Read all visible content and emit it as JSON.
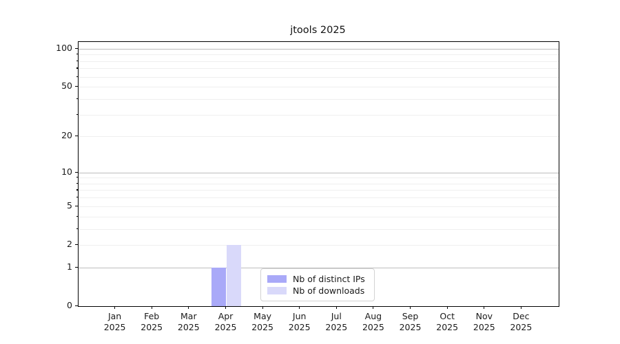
{
  "chart_data": {
    "type": "bar",
    "title": "jtools 2025",
    "x_months": [
      "Jan",
      "Feb",
      "Mar",
      "Apr",
      "May",
      "Jun",
      "Jul",
      "Aug",
      "Sep",
      "Oct",
      "Nov",
      "Dec"
    ],
    "x_year": "2025",
    "categories": [
      "Jan 2025",
      "Feb 2025",
      "Mar 2025",
      "Apr 2025",
      "May 2025",
      "Jun 2025",
      "Jul 2025",
      "Aug 2025",
      "Sep 2025",
      "Oct 2025",
      "Nov 2025",
      "Dec 2025"
    ],
    "series": [
      {
        "name": "Nb of distinct IPs",
        "color": "#a9a9f8",
        "values": [
          0,
          0,
          0,
          1,
          0,
          0,
          0,
          0,
          0,
          0,
          0,
          0
        ]
      },
      {
        "name": "Nb of downloads",
        "color": "#d9d9fa",
        "values": [
          0,
          0,
          0,
          2,
          0,
          0,
          0,
          0,
          0,
          0,
          0,
          0
        ]
      }
    ],
    "yscale": "log1p",
    "ylim": [
      0,
      113
    ],
    "y_ticks": [
      0,
      1,
      2,
      5,
      10,
      20,
      50,
      100
    ],
    "y_tick_labels": [
      "0",
      "1",
      "2",
      "5",
      "10",
      "20",
      "50",
      "100"
    ],
    "y_major_gridlines": [
      1,
      10,
      100
    ],
    "y_minor_gridlines": [
      2,
      3,
      4,
      5,
      6,
      7,
      8,
      9,
      20,
      30,
      40,
      50,
      60,
      70,
      80,
      90
    ],
    "grid": "on",
    "legend_position": "lower center",
    "colors": {
      "axis": "#000000",
      "major_grid": "#bdbdbd",
      "minor_grid": "#efefef",
      "background": "#ffffff"
    }
  }
}
